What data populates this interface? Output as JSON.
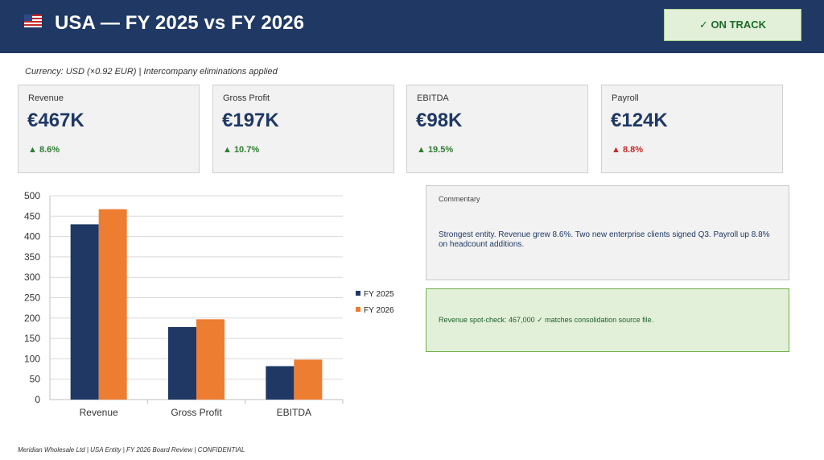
{
  "header": {
    "flag_icon": "us-flag-icon",
    "title": "USA — FY 2025 vs FY 2026",
    "status": "✓ ON TRACK",
    "bg_color": "#1f3864",
    "status_color": "#1e6b2e"
  },
  "subtitle": "Currency: USD (×0.92 EUR) | Intercompany eliminations applied",
  "kpis": [
    {
      "label": "Revenue",
      "value": "€467K",
      "delta": "▲ 8.6%",
      "direction": "up"
    },
    {
      "label": "Gross Profit",
      "value": "€197K",
      "delta": "▲ 10.7%",
      "direction": "up"
    },
    {
      "label": "EBITDA",
      "value": "€98K",
      "delta": "▲ 19.5%",
      "direction": "up"
    },
    {
      "label": "Payroll",
      "value": "€124K",
      "delta": "▲ 8.8%",
      "direction": "down"
    }
  ],
  "chart_data": {
    "type": "bar",
    "categories": [
      "Revenue",
      "Gross Profit",
      "EBITDA"
    ],
    "series": [
      {
        "name": "FY 2025",
        "values": [
          430,
          178,
          82
        ],
        "color": "#1f3864"
      },
      {
        "name": "FY 2026",
        "values": [
          467,
          197,
          98
        ],
        "color": "#ed7d31"
      }
    ],
    "yticks": [
      "0",
      "50",
      "100",
      "150",
      "200",
      "250",
      "300",
      "350",
      "400",
      "450",
      "500"
    ],
    "ylim": [
      0,
      500
    ],
    "grid": true,
    "legend": "right"
  },
  "commentary": {
    "title": "Commentary",
    "body": "Strongest entity. Revenue grew 8.6%. Two new enterprise clients signed Q3. Payroll up 8.8% on headcount additions."
  },
  "spot_check": {
    "text": "Revenue spot-check: 467,000 ✓ matches consolidation source file."
  },
  "footer": "Meridian Wholesale Ltd | USA Entity | FY 2026 Board Review | CONFIDENTIAL"
}
